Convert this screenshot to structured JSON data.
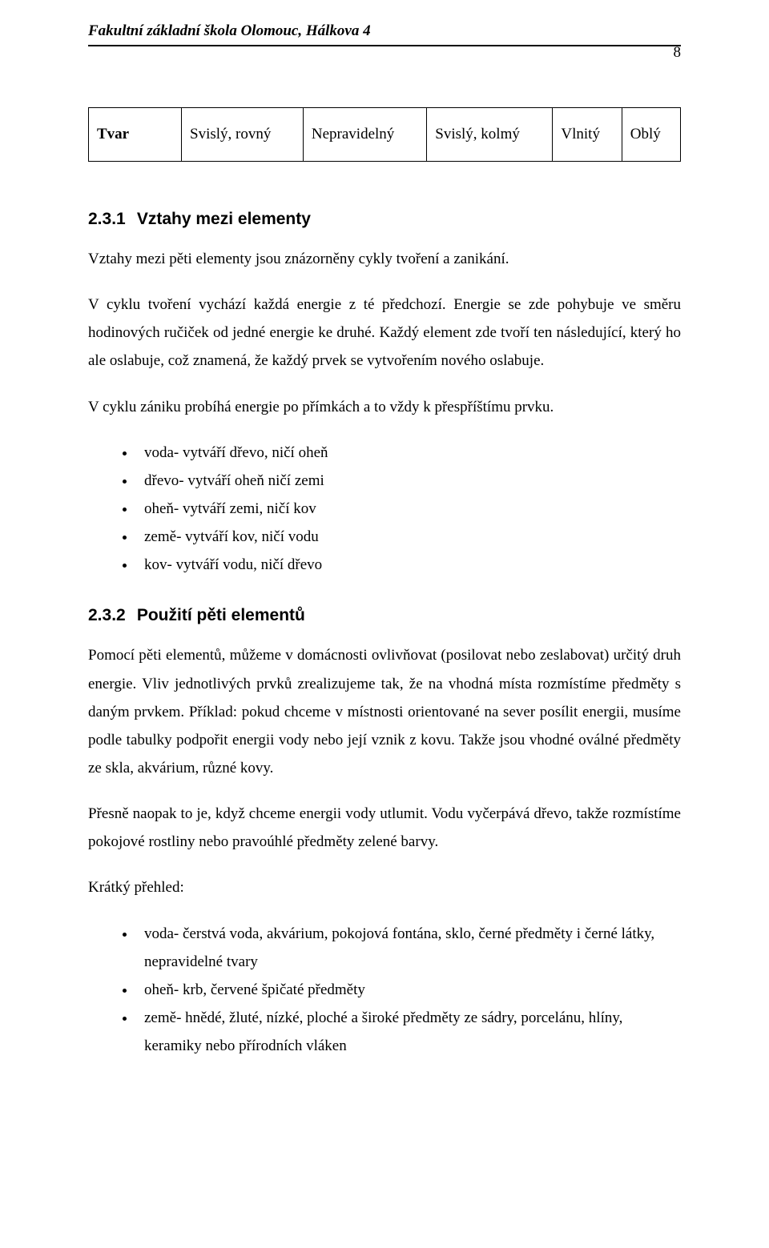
{
  "header": {
    "school": "Fakultní základní škola Olomouc, Hálkova 4",
    "page_number": "8"
  },
  "table": {
    "row_label": "Tvar",
    "cells": [
      "Svislý, rovný",
      "Nepravidelný",
      "Svislý, kolmý",
      "Vlnitý",
      "Oblý"
    ]
  },
  "section231": {
    "number": "2.3.1",
    "title": "Vztahy mezi elementy",
    "para1": "Vztahy mezi pěti elementy jsou znázorněny cykly tvoření a zanikání.",
    "para2": "V cyklu tvoření vychází každá energie z té předchozí. Energie se zde pohybuje ve směru hodinových ručiček od jedné energie ke druhé. Každý element zde tvoří ten následující, který ho ale oslabuje, což znamená, že každý prvek se vytvořením nového oslabuje.",
    "para3": "V cyklu zániku probíhá energie po přímkách a to vždy k přespříštímu prvku.",
    "bullets": [
      "voda- vytváří dřevo, ničí oheň",
      "dřevo- vytváří oheň ničí zemi",
      "oheň- vytváří zemi, ničí kov",
      "země- vytváří kov, ničí vodu",
      "kov- vytváří vodu, ničí dřevo"
    ]
  },
  "section232": {
    "number": "2.3.2",
    "title": "Použití pěti elementů",
    "para1": "Pomocí pěti elementů, můžeme v domácnosti ovlivňovat (posilovat nebo zeslabovat) určitý druh energie. Vliv jednotlivých prvků zrealizujeme tak, že na vhodná místa rozmístíme předměty s daným prvkem. Příklad: pokud chceme v místnosti orientované na sever posílit energii, musíme podle tabulky podpořit energii vody nebo její vznik z kovu. Takže jsou vhodné oválné předměty ze skla, akvárium, různé kovy.",
    "para2": "Přesně naopak to je, když chceme energii vody utlumit. Vodu vyčerpává dřevo, takže rozmístíme pokojové rostliny nebo pravoúhlé předměty zelené barvy.",
    "para3": "Krátký přehled:",
    "bullets": [
      "voda- čerstvá voda, akvárium, pokojová fontána, sklo, černé předměty i černé látky, nepravidelné tvary",
      "oheň- krb, červené špičaté předměty",
      "země- hnědé, žluté, nízké, ploché a široké předměty ze sádry, porcelánu, hlíny, keramiky nebo přírodních vláken"
    ]
  }
}
